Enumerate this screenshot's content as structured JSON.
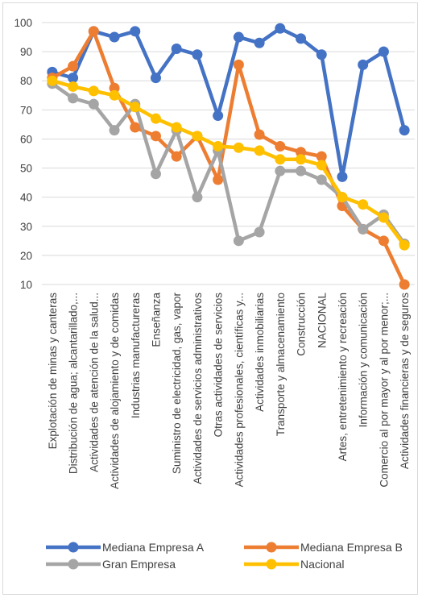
{
  "chart_data": {
    "type": "line",
    "title": "",
    "xlabel": "",
    "ylabel": "",
    "ylim": [
      10,
      100
    ],
    "yticks": [
      10,
      20,
      30,
      40,
      50,
      60,
      70,
      80,
      90,
      100
    ],
    "grid": true,
    "legend_position": "bottom",
    "categories": [
      "Explotación de minas y canteras",
      "Distribución de agua; alcantarillado,...",
      "Actividades de atención de la salud...",
      "Actividades de alojamiento y de comidas",
      "Industrias manufactureras",
      "Enseñanza",
      "Suministro de electricidad, gas, vapor",
      "Actividades de servicios administrativos",
      "Otras actividades de servicios",
      "Actividades profesionales, científicas y...",
      "Actividades inmobiliarias",
      "Transporte y almacenamiento",
      "Construcción",
      "NACIONAL",
      "Artes, entretenimiento y recreación",
      "Información y comunicación",
      "Comercio al por mayor y al por menor;...",
      "Actividades financieras y de seguros"
    ],
    "series": [
      {
        "name": "Mediana Empresa A",
        "color": "#4472c4",
        "values": [
          83,
          81,
          97,
          95,
          97,
          81,
          91,
          89,
          68,
          95,
          93,
          98,
          94.5,
          89,
          47,
          85.5,
          90,
          63
        ]
      },
      {
        "name": "Mediana Empresa B",
        "color": "#ed7d31",
        "values": [
          81,
          85,
          97,
          77.5,
          64,
          61,
          54,
          61,
          46,
          85.5,
          61.5,
          57.5,
          55.5,
          54,
          37,
          29,
          25,
          10
        ]
      },
      {
        "name": "Gran Empresa",
        "color": "#a5a5a5",
        "values": [
          79,
          74,
          72,
          63,
          72,
          48,
          63,
          40,
          56,
          25,
          28,
          49,
          49,
          46,
          40,
          29,
          34,
          24
        ]
      },
      {
        "name": "Nacional",
        "color": "#ffc000",
        "values": [
          80,
          78,
          76.5,
          75,
          71,
          67,
          64,
          61,
          57.5,
          57,
          56,
          53,
          53,
          51,
          40,
          37.5,
          33,
          23.5
        ]
      }
    ]
  }
}
